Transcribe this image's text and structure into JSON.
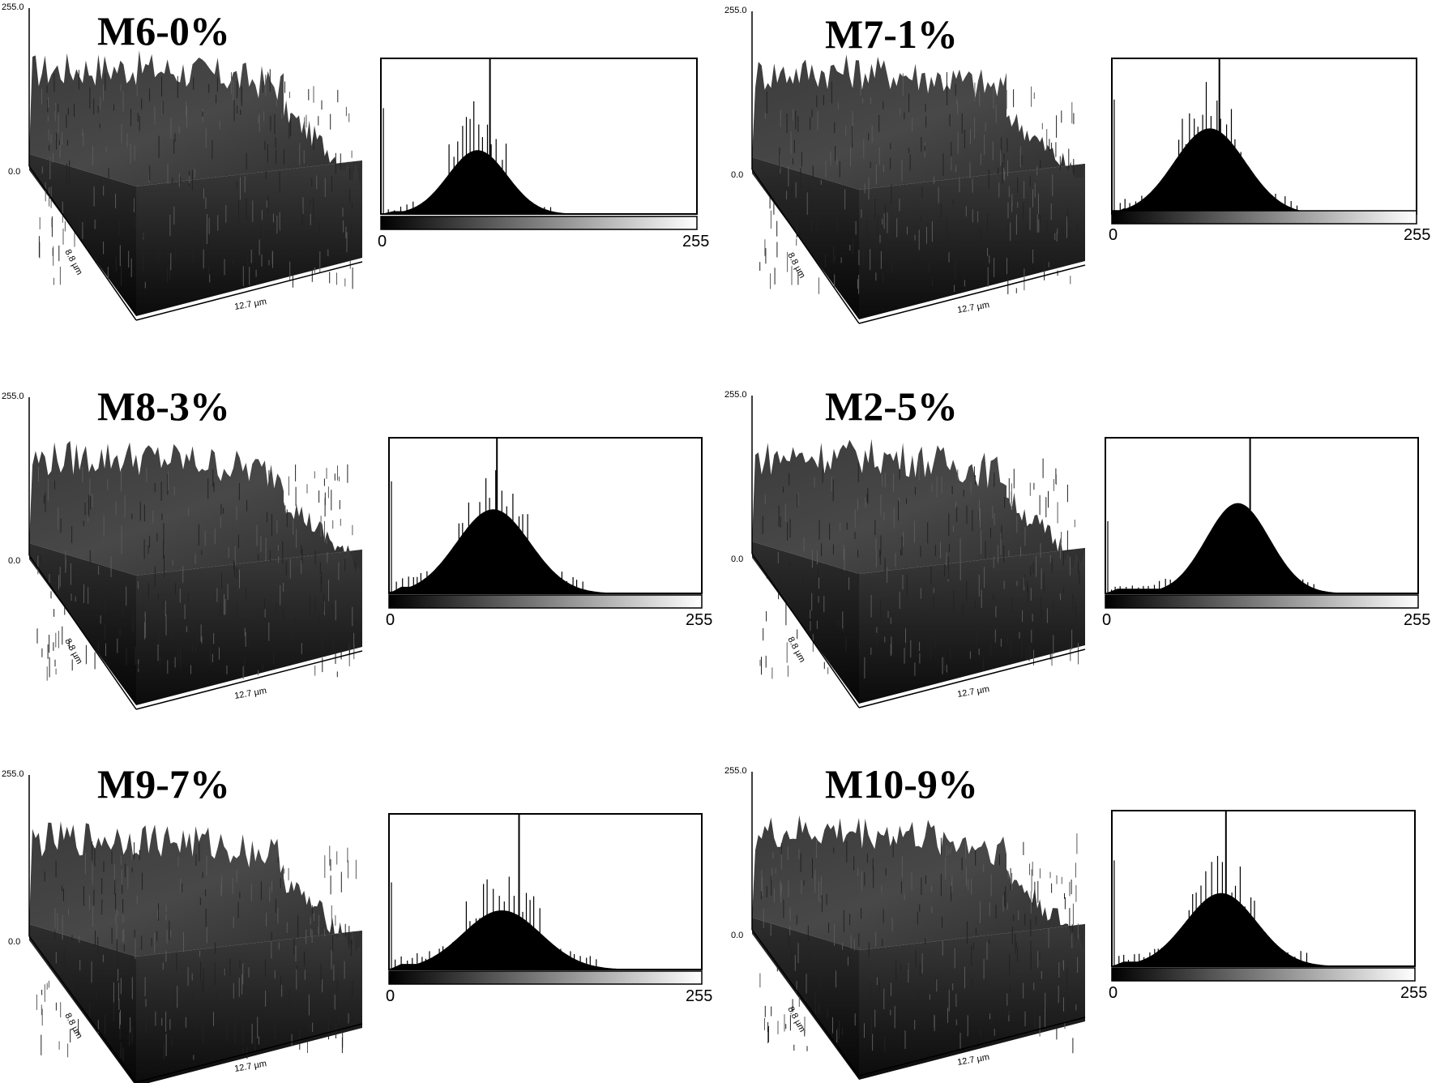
{
  "figure": {
    "panels": [
      {
        "id": "M6",
        "title": "M6-0%",
        "z_top": "255.0",
        "z_bottom": "0.0",
        "y_dim": "8.8 µm",
        "x_dim": "12.7 µm",
        "hist_min": "0",
        "hist_max": "255"
      },
      {
        "id": "M7",
        "title": "M7-1%",
        "z_top": "255.0",
        "z_bottom": "0.0",
        "y_dim": "8.8 µm",
        "x_dim": "12.7 µm",
        "hist_min": "0",
        "hist_max": "255"
      },
      {
        "id": "M8",
        "title": "M8-3%",
        "z_top": "255.0",
        "z_bottom": "0.0",
        "y_dim": "8.8 µm",
        "x_dim": "12.7 µm",
        "hist_min": "0",
        "hist_max": "255"
      },
      {
        "id": "M2",
        "title": "M2-5%",
        "z_top": "255.0",
        "z_bottom": "0.0",
        "y_dim": "8.8 µm",
        "x_dim": "12.7 µm",
        "hist_min": "0",
        "hist_max": "255"
      },
      {
        "id": "M9",
        "title": "M9-7%",
        "z_top": "255.0",
        "z_bottom": "0.0",
        "y_dim": "8.8 µm",
        "x_dim": "12.7 µm",
        "hist_min": "0",
        "hist_max": "255"
      },
      {
        "id": "M10",
        "title": "M10-9%",
        "z_top": "255.0",
        "z_bottom": "0.0",
        "y_dim": "8.8 µm",
        "x_dim": "12.7 µm",
        "hist_min": "0",
        "hist_max": "255"
      }
    ]
  },
  "chart_data": [
    {
      "type": "histogram",
      "title": "M6-0%",
      "xlim": [
        0,
        255
      ],
      "marker_x": 88,
      "peak_x": 78,
      "peak_height": 0.41,
      "spread": 24,
      "spike_height": 0.85,
      "baseline_left": 0.06
    },
    {
      "type": "histogram",
      "title": "M7-1%",
      "xlim": [
        0,
        255
      ],
      "marker_x": 90,
      "peak_x": 82,
      "peak_height": 0.55,
      "spread": 30,
      "spike_height": 0.92,
      "baseline_left": 0.12
    },
    {
      "type": "histogram",
      "title": "M8-3%",
      "xlim": [
        0,
        255
      ],
      "marker_x": 88,
      "peak_x": 85,
      "peak_height": 0.54,
      "spread": 30,
      "spike_height": 0.9,
      "baseline_left": 0.14
    },
    {
      "type": "histogram",
      "title": "M2-5%",
      "xlim": [
        0,
        255
      ],
      "marker_x": 118,
      "peak_x": 108,
      "peak_height": 0.58,
      "spread": 26,
      "spike_height": 0.58,
      "baseline_left": 0.1
    },
    {
      "type": "histogram",
      "title": "M9-7%",
      "xlim": [
        0,
        255
      ],
      "marker_x": 106,
      "peak_x": 92,
      "peak_height": 0.38,
      "spread": 32,
      "spike_height": 0.7,
      "baseline_left": 0.12
    },
    {
      "type": "histogram",
      "title": "M10-9%",
      "xlim": [
        0,
        255
      ],
      "marker_x": 96,
      "peak_x": 92,
      "peak_height": 0.47,
      "spread": 30,
      "spike_height": 0.85,
      "baseline_left": 0.1
    }
  ]
}
